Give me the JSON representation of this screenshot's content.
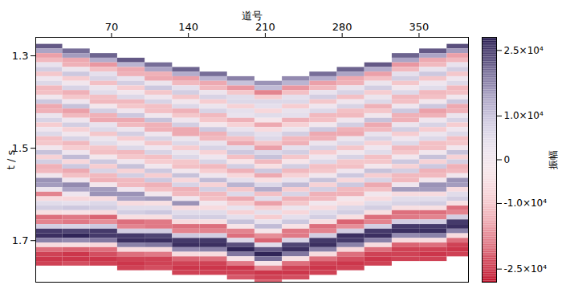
{
  "chart_data": {
    "type": "heatmap",
    "x_label": "道号",
    "y_label": "t / s",
    "xlim": [
      1,
      395
    ],
    "xticks": [
      70,
      140,
      210,
      280,
      350
    ],
    "ylim": [
      1.26,
      1.79
    ],
    "yticks": [
      1.3,
      1.5,
      1.7
    ],
    "cells": {
      "x": [
        13,
        38,
        63,
        88,
        113,
        138,
        163,
        188,
        213,
        238,
        263,
        288,
        313,
        338,
        363,
        388
      ],
      "y": [
        1.27,
        1.28,
        1.29,
        1.3,
        1.31,
        1.32,
        1.33,
        1.34,
        1.35,
        1.36,
        1.37,
        1.38,
        1.39,
        1.4,
        1.41,
        1.42,
        1.43,
        1.44,
        1.45,
        1.46,
        1.47,
        1.48,
        1.49,
        1.5,
        1.51,
        1.52,
        1.53,
        1.54,
        1.55,
        1.56,
        1.57,
        1.58,
        1.59,
        1.6,
        1.61,
        1.62,
        1.63,
        1.64,
        1.65,
        1.66,
        1.67,
        1.68,
        1.69,
        1.7,
        1.71,
        1.72,
        1.73,
        1.74,
        1.75,
        1.76,
        1.77,
        1.78,
        1.79
      ],
      "values": [
        [
          null,
          22000,
          14000,
          -15000,
          -12000,
          3000,
          8000,
          -10000,
          1000,
          6000,
          -12000,
          -11000,
          0,
          9000,
          -14000,
          -13000,
          2000,
          7000,
          -9000,
          1000,
          6000,
          -11000,
          -10000,
          0,
          10000,
          -8000,
          8000,
          -13000,
          -12000,
          0,
          16000,
          15000,
          2000,
          -18000,
          -6000,
          5000,
          8000,
          -5000,
          -20000,
          -18000,
          8000,
          25000,
          26000,
          18000,
          -6000,
          -20000,
          -24000,
          -25000,
          -24000,
          null,
          null,
          null,
          null
        ],
        [
          null,
          null,
          20000,
          15000,
          -14000,
          -13000,
          2000,
          9000,
          -9000,
          0,
          7000,
          -13000,
          -10000,
          1000,
          10000,
          -15000,
          -12000,
          1000,
          8000,
          -8000,
          0,
          7000,
          -12000,
          -9000,
          1000,
          11000,
          -7000,
          9000,
          -14000,
          -11000,
          1000,
          17000,
          14000,
          1000,
          -7000,
          4000,
          9000,
          -4000,
          -19000,
          -19000,
          7000,
          24000,
          27000,
          17000,
          -5000,
          -21000,
          -25000,
          -25000,
          -23000,
          null,
          null,
          null,
          null
        ],
        [
          null,
          null,
          null,
          21000,
          13000,
          -16000,
          -11000,
          4000,
          7000,
          -11000,
          2000,
          5000,
          -11000,
          -12000,
          -1000,
          8000,
          -13000,
          -14000,
          3000,
          6000,
          -10000,
          2000,
          5000,
          -10000,
          -11000,
          -1000,
          9000,
          -9000,
          7000,
          -12000,
          -13000,
          -1000,
          15000,
          16000,
          -6000,
          6000,
          8000,
          -6000,
          -21000,
          -17000,
          9000,
          25000,
          25000,
          19000,
          -7000,
          -20000,
          -23000,
          -25000,
          -24000,
          null,
          null,
          null,
          null
        ],
        [
          null,
          null,
          null,
          null,
          22000,
          12000,
          -14000,
          -13000,
          3000,
          8000,
          -9000,
          0,
          6000,
          -12000,
          -10000,
          1000,
          9000,
          -14000,
          -12000,
          2000,
          8000,
          -9000,
          0,
          6000,
          -12000,
          -10000,
          1000,
          10000,
          -8000,
          8000,
          -12000,
          -12000,
          1000,
          16000,
          14000,
          -6000,
          5000,
          8000,
          -5000,
          -20000,
          -18000,
          8000,
          25000,
          26000,
          18000,
          -6000,
          -20000,
          -24000,
          -25000,
          -24000,
          null,
          null,
          null
        ],
        [
          null,
          null,
          null,
          null,
          null,
          20000,
          14000,
          -13000,
          -14000,
          2000,
          9000,
          -10000,
          1000,
          7000,
          -11000,
          -11000,
          0,
          10000,
          -13000,
          -13000,
          1000,
          7000,
          -10000,
          1000,
          7000,
          -11000,
          -9000,
          0,
          9000,
          -9000,
          9000,
          -13000,
          -11000,
          0,
          15000,
          -5000,
          5000,
          9000,
          -5000,
          -19000,
          -19000,
          8000,
          24000,
          26000,
          19000,
          -6000,
          -19000,
          -24000,
          -24000,
          -23000,
          null,
          null,
          null
        ],
        [
          null,
          null,
          null,
          null,
          null,
          null,
          21000,
          13000,
          -15000,
          -12000,
          4000,
          8000,
          -10000,
          0,
          6000,
          -13000,
          -10000,
          1000,
          8000,
          -14000,
          -14000,
          2000,
          6000,
          -9000,
          2000,
          6000,
          -10000,
          -11000,
          0,
          10000,
          -7000,
          7000,
          -13000,
          -12000,
          1000,
          16000,
          -6000,
          5000,
          8000,
          -6000,
          -20000,
          -18000,
          9000,
          25000,
          26000,
          17000,
          -6000,
          -21000,
          -24000,
          -25000,
          -24000,
          null,
          null
        ],
        [
          null,
          null,
          null,
          null,
          null,
          null,
          null,
          20000,
          12000,
          -14000,
          -12000,
          2000,
          7000,
          -9000,
          2000,
          7000,
          -12000,
          -10000,
          -1000,
          9000,
          -13000,
          -12000,
          3000,
          7000,
          -8000,
          1000,
          7000,
          -12000,
          -9000,
          1000,
          11000,
          -8000,
          8000,
          -12000,
          -11000,
          0,
          -6000,
          5000,
          8000,
          -5000,
          -20000,
          -18000,
          8000,
          25000,
          26000,
          18000,
          -6000,
          -20000,
          -24000,
          -25000,
          -24000,
          null,
          null
        ],
        [
          null,
          null,
          null,
          null,
          null,
          null,
          null,
          null,
          18000,
          10000,
          -16000,
          -10000,
          5000,
          6000,
          -8000,
          4000,
          3000,
          -13000,
          -8000,
          3000,
          7000,
          -11000,
          -14000,
          5000,
          9000,
          -11000,
          -3000,
          8000,
          -13000,
          -7000,
          4000,
          12000,
          -10000,
          6000,
          -14000,
          -9000,
          3000,
          -8000,
          4000,
          10000,
          -3000,
          -18000,
          -20000,
          6000,
          23000,
          27000,
          19000,
          -4000,
          -19000,
          -25000,
          -24000,
          -22000,
          null
        ],
        [
          null,
          null,
          null,
          null,
          null,
          null,
          null,
          null,
          null,
          16000,
          11000,
          -18000,
          -9000,
          6000,
          4000,
          -7000,
          5000,
          -2000,
          -14000,
          -6000,
          4000,
          6000,
          -10000,
          -15000,
          6000,
          10000,
          -12000,
          -5000,
          9000,
          -14000,
          -5000,
          6000,
          13000,
          -11000,
          5000,
          -15000,
          -8000,
          4000,
          -9000,
          3000,
          11000,
          -2000,
          -17000,
          -21000,
          5000,
          22000,
          27000,
          20000,
          -3000,
          -18000,
          -25000,
          -24000,
          -21000
        ],
        [
          null,
          null,
          null,
          null,
          null,
          null,
          null,
          null,
          17000,
          12000,
          -16000,
          -11000,
          4000,
          6000,
          -9000,
          3000,
          4000,
          -13000,
          -8000,
          2000,
          8000,
          -12000,
          -13000,
          4000,
          8000,
          -10000,
          -2000,
          8000,
          -12000,
          -8000,
          3000,
          11000,
          -9000,
          7000,
          -13000,
          -10000,
          2000,
          -7000,
          4000,
          9000,
          -4000,
          -19000,
          -19000,
          7000,
          24000,
          26000,
          19000,
          -5000,
          -20000,
          -24000,
          -25000,
          -23000,
          null
        ],
        [
          null,
          null,
          null,
          null,
          null,
          null,
          null,
          20000,
          13000,
          -15000,
          -12000,
          3000,
          8000,
          -10000,
          1000,
          6000,
          -12000,
          -11000,
          0,
          9000,
          -14000,
          -13000,
          2000,
          7000,
          -9000,
          1000,
          6000,
          -11000,
          -10000,
          0,
          10000,
          -8000,
          8000,
          -13000,
          -12000,
          0,
          -6000,
          5000,
          8000,
          -5000,
          -20000,
          -18000,
          8000,
          25000,
          26000,
          18000,
          -6000,
          -20000,
          -24000,
          -25000,
          -24000,
          null,
          null
        ],
        [
          null,
          null,
          null,
          null,
          null,
          null,
          21000,
          14000,
          -14000,
          -13000,
          3000,
          7000,
          -11000,
          1000,
          7000,
          -11000,
          -12000,
          1000,
          8000,
          -13000,
          -14000,
          2000,
          6000,
          -10000,
          0,
          7000,
          -10000,
          -11000,
          1000,
          9000,
          -7000,
          9000,
          -12000,
          -13000,
          -1000,
          -5000,
          6000,
          8000,
          -5000,
          -21000,
          -17000,
          8000,
          26000,
          25000,
          18000,
          -7000,
          -20000,
          -23000,
          -25000,
          -24000,
          null,
          null,
          null
        ],
        [
          null,
          null,
          null,
          null,
          null,
          22000,
          13000,
          -15000,
          -11000,
          2000,
          8000,
          -9000,
          2000,
          6000,
          -13000,
          -10000,
          0,
          10000,
          -14000,
          -12000,
          3000,
          7000,
          -8000,
          1000,
          5000,
          -11000,
          -10000,
          -1000,
          10000,
          -9000,
          7000,
          -14000,
          -11000,
          0,
          -6000,
          5000,
          8000,
          -5000,
          -20000,
          -18000,
          8000,
          25000,
          26000,
          18000,
          -6000,
          -20000,
          -24000,
          -25000,
          -24000,
          null,
          null,
          null,
          null
        ],
        [
          null,
          null,
          null,
          21000,
          14000,
          -16000,
          -12000,
          4000,
          8000,
          -10000,
          0,
          6000,
          -12000,
          -11000,
          1000,
          9000,
          -13000,
          -13000,
          2000,
          8000,
          -9000,
          1000,
          6000,
          -12000,
          -10000,
          0,
          9000,
          -8000,
          8000,
          -12000,
          -12000,
          1000,
          15000,
          -6000,
          5000,
          7000,
          -5000,
          -20000,
          -19000,
          8000,
          25000,
          26000,
          17000,
          -6000,
          -21000,
          -24000,
          -24000,
          -24000,
          null,
          null,
          null,
          null,
          null
        ],
        [
          null,
          null,
          22000,
          14000,
          -14000,
          -12000,
          3000,
          9000,
          -10000,
          1000,
          5000,
          -12000,
          -11000,
          0,
          9000,
          -15000,
          -13000,
          1000,
          7000,
          -9000,
          2000,
          6000,
          -11000,
          -11000,
          0,
          10000,
          -8000,
          9000,
          -13000,
          -12000,
          0,
          16000,
          15000,
          -6000,
          5000,
          8000,
          -5000,
          -20000,
          -18000,
          8000,
          25000,
          26000,
          18000,
          -6000,
          -20000,
          -24000,
          -25000,
          -24000,
          null,
          null,
          null,
          null,
          null
        ],
        [
          null,
          23000,
          15000,
          -15000,
          -12000,
          3000,
          8000,
          -10000,
          1000,
          6000,
          -12000,
          -11000,
          0,
          9000,
          -14000,
          -13000,
          2000,
          7000,
          -9000,
          1000,
          6000,
          -11000,
          -10000,
          0,
          10000,
          -8000,
          8000,
          -13000,
          -12000,
          0,
          16000,
          15000,
          -6000,
          5000,
          8000,
          -5000,
          -20000,
          -18000,
          8000,
          25000,
          26000,
          18000,
          -6000,
          -20000,
          -24000,
          -25000,
          -24000,
          null,
          null,
          null,
          null,
          null,
          null
        ]
      ]
    },
    "colorbar": {
      "label": "振幅",
      "range": [
        -28000,
        28000
      ],
      "ticks": [
        {
          "value": 25000,
          "label": "2.5×10⁴"
        },
        {
          "value": 10000,
          "label": "1.0×10⁴"
        },
        0,
        {
          "value": -10000,
          "label": "-1.0×10⁴"
        },
        {
          "value": -25000,
          "label": "-2.5×10⁴"
        }
      ],
      "colors": [
        "#c1132c",
        "#f4b9be",
        "#ffffff",
        "#b8b0d4",
        "#261a4e"
      ]
    }
  }
}
